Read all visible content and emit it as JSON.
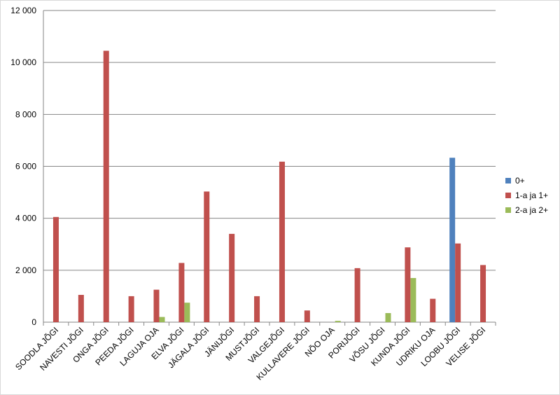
{
  "chart_data": {
    "type": "bar",
    "categories": [
      "SOODLA JÕGI",
      "NAVESTI JÕGI",
      "ONGA JÕGI",
      "PEEDA JÕGI",
      "LAGUJA OJA",
      "ELVA JÕGI",
      "JÄGALA JÕGI",
      "JÄNIJÕGI",
      "MUSTJÕGI",
      "VALGEJÕGI",
      "KULLAVERE JÕGI",
      "NÕO OJA",
      "PORIJÕGI",
      "VÕSU JÕGI",
      "KUNDA JÕGI",
      "UDRIKU OJA",
      "LOOBU JÕGI",
      "VELISE JÕGI"
    ],
    "series": [
      {
        "name": "0+",
        "color": "#4f81bd",
        "values": [
          null,
          null,
          null,
          null,
          null,
          null,
          null,
          null,
          null,
          null,
          null,
          null,
          null,
          null,
          null,
          null,
          6330,
          null
        ]
      },
      {
        "name": "1-a ja 1+",
        "color": "#c0504d",
        "values": [
          4050,
          1050,
          10450,
          1000,
          1250,
          2280,
          5030,
          3400,
          1000,
          6180,
          450,
          null,
          2080,
          null,
          2880,
          900,
          3030,
          2200
        ]
      },
      {
        "name": "2-a ja 2+",
        "color": "#9bbb59",
        "values": [
          null,
          null,
          null,
          null,
          200,
          750,
          null,
          null,
          null,
          null,
          null,
          50,
          null,
          350,
          1700,
          null,
          null,
          null
        ]
      }
    ],
    "ylim": [
      0,
      12000
    ],
    "yticks": [
      0,
      {
        "value": 2000,
        "label": "2 000"
      },
      {
        "value": 4000,
        "label": "4 000"
      },
      {
        "value": 6000,
        "label": "6 000"
      },
      {
        "value": 8000,
        "label": "8 000"
      },
      {
        "value": 10000,
        "label": "10 000"
      },
      {
        "value": 12000,
        "label": "12 000"
      }
    ],
    "grid": true,
    "legend": "right"
  }
}
